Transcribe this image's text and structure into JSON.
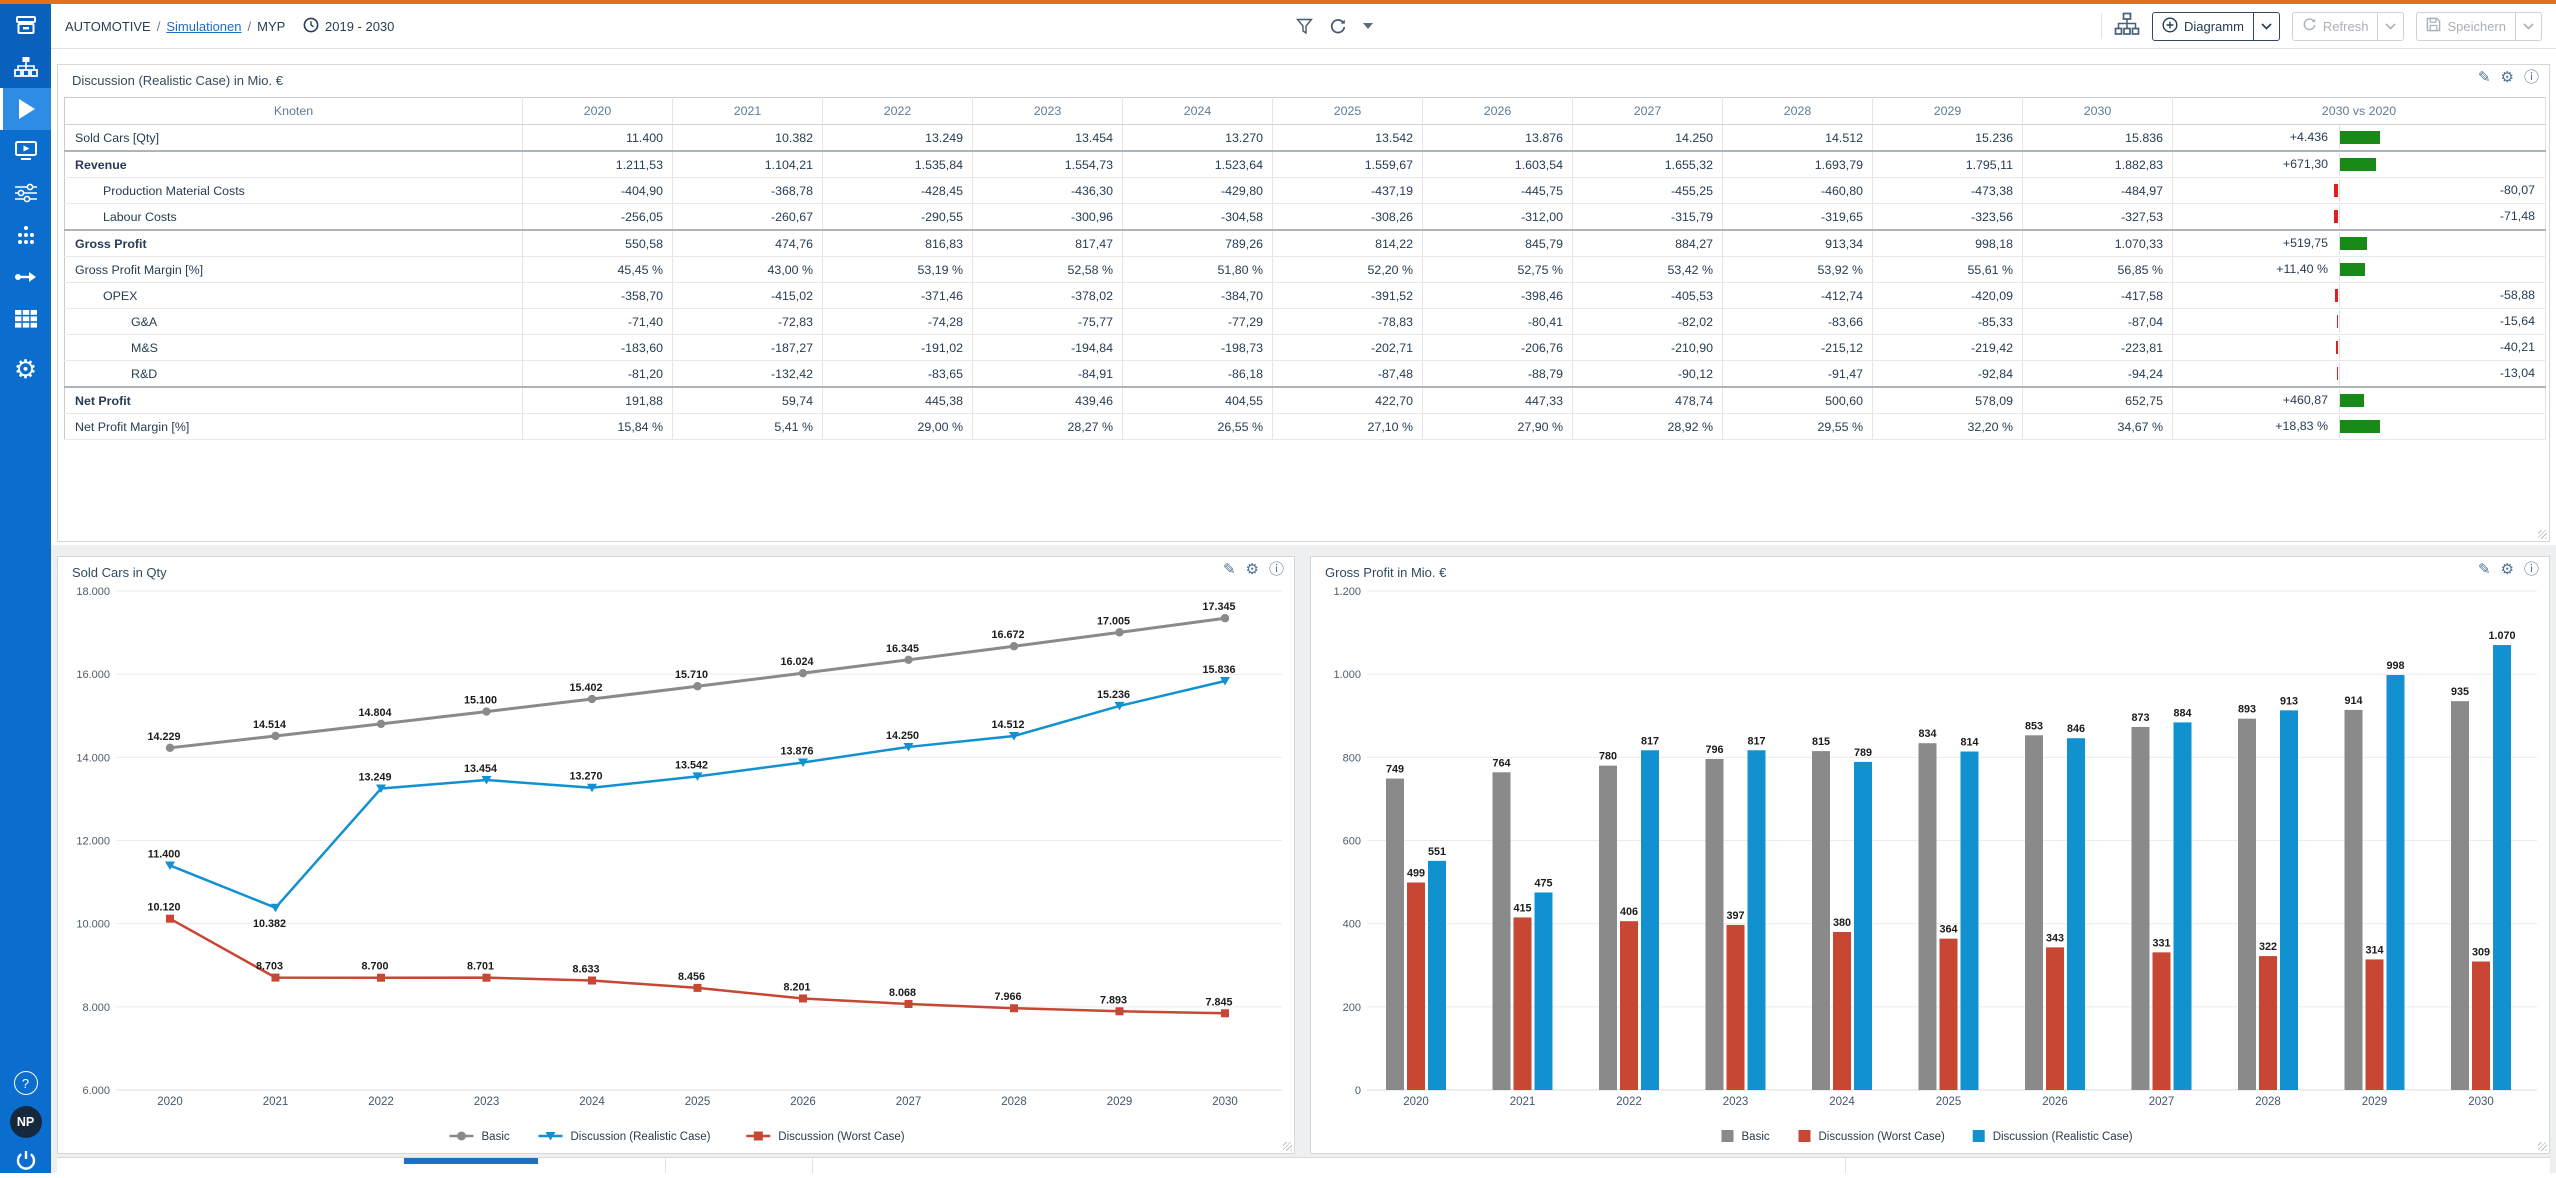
{
  "colors": {
    "accent_orange": "#e2701c",
    "sidebar": "#0b6ecf",
    "sidebar_active": "#2e8ce5",
    "link": "#1b6ec2",
    "positive": "#188a18",
    "negative": "#e11d1d",
    "series_gray": "#8a8a8a",
    "series_blue": "#1291d0",
    "series_red": "#c74634"
  },
  "topbar": {
    "breadcrumb": {
      "section": "AUTOMOTIVE",
      "sep1": "/",
      "link": "Simulationen",
      "sep2": "/",
      "page": "MYP"
    },
    "period": "2019 - 2030",
    "buttons": {
      "diagram": "Diagramm",
      "refresh": "Refresh",
      "save": "Speichern"
    }
  },
  "sidebar": {
    "items": [
      "archive",
      "scenarios-tree",
      "simulation-play",
      "presentation",
      "levers",
      "nodes",
      "data-flow",
      "data-grid",
      "settings"
    ],
    "help": "?",
    "avatar_initials": "NP"
  },
  "table_panel": {
    "title": "Discussion (Realistic Case) in Mio. €",
    "columns": [
      "Knoten",
      "2020",
      "2021",
      "2022",
      "2023",
      "2024",
      "2025",
      "2026",
      "2027",
      "2028",
      "2029",
      "2030",
      "2030 vs 2020"
    ],
    "rows": [
      {
        "label": "Sold Cars [Qty]",
        "indent": 0,
        "bold": false,
        "sep": false,
        "values": [
          "11.400",
          "10.382",
          "13.249",
          "13.454",
          "13.270",
          "13.542",
          "13.876",
          "14.250",
          "14.512",
          "15.236",
          "15.836"
        ],
        "delta": {
          "text": "+4.436",
          "bar": 40
        }
      },
      {
        "label": "Revenue",
        "indent": 0,
        "bold": true,
        "sep": true,
        "values": [
          "1.211,53",
          "1.104,21",
          "1.535,84",
          "1.554,73",
          "1.523,64",
          "1.559,67",
          "1.603,54",
          "1.655,32",
          "1.693,79",
          "1.795,11",
          "1.882,83"
        ],
        "delta": {
          "text": "+671,30",
          "bar": 36
        }
      },
      {
        "label": "Production Material Costs",
        "indent": 1,
        "bold": false,
        "sep": false,
        "values": [
          "-404,90",
          "-368,78",
          "-428,45",
          "-436,30",
          "-429,80",
          "-437,19",
          "-445,75",
          "-455,25",
          "-460,80",
          "-473,38",
          "-484,97"
        ],
        "delta": {
          "text": "-80,07",
          "bar": 4
        }
      },
      {
        "label": "Labour Costs",
        "indent": 1,
        "bold": false,
        "sep": false,
        "values": [
          "-256,05",
          "-260,67",
          "-290,55",
          "-300,96",
          "-304,58",
          "-308,26",
          "-312,00",
          "-315,79",
          "-319,65",
          "-323,56",
          "-327,53"
        ],
        "delta": {
          "text": "-71,48",
          "bar": 4
        }
      },
      {
        "label": "Gross Profit",
        "indent": 0,
        "bold": true,
        "sep": true,
        "values": [
          "550,58",
          "474,76",
          "816,83",
          "817,47",
          "789,26",
          "814,22",
          "845,79",
          "884,27",
          "913,34",
          "998,18",
          "1.070,33"
        ],
        "delta": {
          "text": "+519,75",
          "bar": 27
        }
      },
      {
        "label": "Gross Profit Margin [%]",
        "indent": 0,
        "bold": false,
        "sep": false,
        "values": [
          "45,45 %",
          "43,00 %",
          "53,19 %",
          "52,58 %",
          "51,80 %",
          "52,20 %",
          "52,75 %",
          "53,42 %",
          "53,92 %",
          "55,61 %",
          "56,85 %"
        ],
        "delta": {
          "text": "+11,40 %",
          "bar": 25
        }
      },
      {
        "label": "OPEX",
        "indent": 1,
        "bold": false,
        "sep": false,
        "values": [
          "-358,70",
          "-415,02",
          "-371,46",
          "-378,02",
          "-384,70",
          "-391,52",
          "-398,46",
          "-405,53",
          "-412,74",
          "-420,09",
          "-417,58"
        ],
        "delta": {
          "text": "-58,88",
          "bar": 3
        }
      },
      {
        "label": "G&A",
        "indent": 2,
        "bold": false,
        "sep": false,
        "values": [
          "-71,40",
          "-72,83",
          "-74,28",
          "-75,77",
          "-77,29",
          "-78,83",
          "-80,41",
          "-82,02",
          "-83,66",
          "-85,33",
          "-87,04"
        ],
        "delta": {
          "text": "-15,64",
          "bar": 1
        }
      },
      {
        "label": "M&S",
        "indent": 2,
        "bold": false,
        "sep": false,
        "values": [
          "-183,60",
          "-187,27",
          "-191,02",
          "-194,84",
          "-198,73",
          "-202,71",
          "-206,76",
          "-210,90",
          "-215,12",
          "-219,42",
          "-223,81"
        ],
        "delta": {
          "text": "-40,21",
          "bar": 2
        }
      },
      {
        "label": "R&D",
        "indent": 2,
        "bold": false,
        "sep": false,
        "values": [
          "-81,20",
          "-132,42",
          "-83,65",
          "-84,91",
          "-86,18",
          "-87,48",
          "-88,79",
          "-90,12",
          "-91,47",
          "-92,84",
          "-94,24"
        ],
        "delta": {
          "text": "-13,04",
          "bar": 1
        }
      },
      {
        "label": "Net Profit",
        "indent": 0,
        "bold": true,
        "sep": true,
        "values": [
          "191,88",
          "59,74",
          "445,38",
          "439,46",
          "404,55",
          "422,70",
          "447,33",
          "478,74",
          "500,60",
          "578,09",
          "652,75"
        ],
        "delta": {
          "text": "+460,87",
          "bar": 24
        }
      },
      {
        "label": "Net Profit Margin [%]",
        "indent": 0,
        "bold": false,
        "sep": false,
        "values": [
          "15,84 %",
          "5,41 %",
          "29,00 %",
          "28,27 %",
          "26,55 %",
          "27,10 %",
          "27,90 %",
          "28,92 %",
          "29,55 %",
          "32,20 %",
          "34,67 %"
        ],
        "delta": {
          "text": "+18,83 %",
          "bar": 40
        }
      }
    ]
  },
  "chart_data": [
    {
      "type": "line",
      "title": "Sold Cars in Qty",
      "x": [
        "2020",
        "2021",
        "2022",
        "2023",
        "2024",
        "2025",
        "2026",
        "2027",
        "2028",
        "2029",
        "2030"
      ],
      "ylim": [
        6000,
        18000
      ],
      "ytick_values": [
        6000,
        8000,
        10000,
        12000,
        14000,
        16000,
        18000
      ],
      "ytick_labels": [
        "6.000",
        "8.000",
        "10.000",
        "12.000",
        "14.000",
        "16.000",
        "18.000"
      ],
      "grid": true,
      "legend_position": "bottom-center",
      "series": [
        {
          "name": "Basic",
          "color": "#8a8a8a",
          "marker": "circle",
          "values": [
            14229,
            14514,
            14804,
            15100,
            15402,
            15710,
            16024,
            16345,
            16672,
            17005,
            17345
          ],
          "labels": [
            "14.229",
            "14.514",
            "14.804",
            "15.100",
            "15.402",
            "15.710",
            "16.024",
            "16.345",
            "16.672",
            "17.005",
            "17.345"
          ],
          "label_below": []
        },
        {
          "name": "Discussion (Realistic Case)",
          "color": "#1291d0",
          "marker": "triangle",
          "values": [
            11400,
            10382,
            13249,
            13454,
            13270,
            13542,
            13876,
            14250,
            14512,
            15236,
            15836
          ],
          "labels": [
            "11.400",
            "10.382",
            "13.249",
            "13.454",
            "13.270",
            "13.542",
            "13.876",
            "14.250",
            "14.512",
            "15.236",
            "15.836"
          ],
          "label_below": [
            1
          ]
        },
        {
          "name": "Discussion (Worst Case)",
          "color": "#c74634",
          "marker": "square",
          "values": [
            10120,
            8703,
            8700,
            8701,
            8633,
            8456,
            8201,
            8068,
            7966,
            7893,
            7845
          ],
          "labels": [
            "10.120",
            "8.703",
            "8.700",
            "8.701",
            "8.633",
            "8.456",
            "8.201",
            "8.068",
            "7.966",
            "7.893",
            "7.845"
          ],
          "label_below": []
        }
      ],
      "legend": [
        "Basic",
        "Discussion (Realistic Case)",
        "Discussion (Worst Case)"
      ]
    },
    {
      "type": "bar",
      "title": "Gross Profit in Mio. €",
      "categories": [
        "2020",
        "2021",
        "2022",
        "2023",
        "2024",
        "2025",
        "2026",
        "2027",
        "2028",
        "2029",
        "2030"
      ],
      "ylim": [
        0,
        1200
      ],
      "ytick_values": [
        0,
        200,
        400,
        600,
        800,
        1000,
        1200
      ],
      "ytick_labels": [
        "0",
        "200",
        "400",
        "600",
        "800",
        "1.000",
        "1.200"
      ],
      "grid": true,
      "legend_position": "bottom-center",
      "series": [
        {
          "name": "Basic",
          "color": "#8a8a8a",
          "values": [
            749,
            764,
            780,
            796,
            815,
            834,
            853,
            873,
            893,
            914,
            935
          ],
          "labels": [
            "749",
            "764",
            "780",
            "796",
            "815",
            "834",
            "853",
            "873",
            "893",
            "914",
            "935"
          ]
        },
        {
          "name": "Discussion (Worst Case)",
          "color": "#c74634",
          "values": [
            499,
            415,
            406,
            397,
            380,
            364,
            343,
            331,
            322,
            314,
            309
          ],
          "labels": [
            "499",
            "415",
            "406",
            "397",
            "380",
            "364",
            "343",
            "331",
            "322",
            "314",
            "309"
          ]
        },
        {
          "name": "Discussion (Realistic Case)",
          "color": "#1291d0",
          "values": [
            551,
            475,
            817,
            817,
            789,
            814,
            846,
            884,
            913,
            998,
            1070
          ],
          "labels": [
            "551",
            "475",
            "817",
            "817",
            "789",
            "814",
            "846",
            "884",
            "913",
            "998",
            "1.070"
          ]
        }
      ],
      "legend": [
        "Basic",
        "Discussion (Worst Case)",
        "Discussion (Realistic Case)"
      ]
    }
  ]
}
